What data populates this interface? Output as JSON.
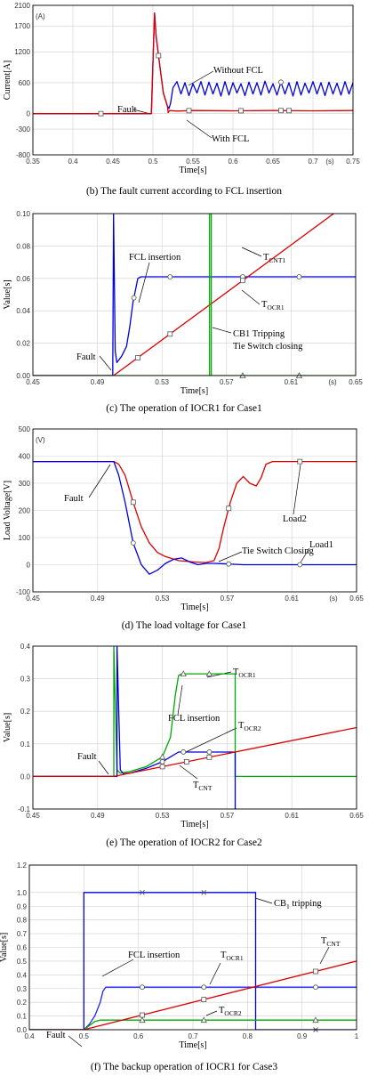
{
  "chart_data": [
    {
      "type": "line",
      "caption": "(b)  The fault current according to FCL insertion",
      "xlabel": "Time[s]",
      "ylabel": "Current[A]",
      "x_unit": "(s)",
      "y_unit": "(A)",
      "xlim": [
        0.35,
        0.75
      ],
      "ylim": [
        -800,
        2100
      ],
      "xticks": [
        "0.35",
        "0.4",
        "0.45",
        "0.5",
        "0.55",
        "0.6",
        "0.65",
        "0.7",
        "0.75"
      ],
      "yticks": [
        "-800",
        "-300",
        "0",
        "600",
        "1200",
        "1700",
        "2100"
      ],
      "series": [
        {
          "name": "Without FCL",
          "color": "#0000dd",
          "x": [
            0.35,
            0.498,
            0.502,
            0.504,
            0.508,
            0.513,
            0.518,
            0.52,
            0.522,
            0.525,
            0.53,
            0.535,
            0.54,
            0.545,
            0.55,
            0.555,
            0.56,
            0.565,
            0.57,
            0.575,
            0.58,
            0.585,
            0.59,
            0.595,
            0.6,
            0.605,
            0.61,
            0.615,
            0.62,
            0.625,
            0.63,
            0.635,
            0.64,
            0.645,
            0.65,
            0.655,
            0.66,
            0.665,
            0.67,
            0.675,
            0.68,
            0.685,
            0.69,
            0.695,
            0.7,
            0.705,
            0.71,
            0.715,
            0.72,
            0.725,
            0.73,
            0.735,
            0.74,
            0.745,
            0.75
          ],
          "y": [
            0,
            0,
            1950,
            1500,
            1000,
            400,
            150,
            100,
            200,
            500,
            620,
            380,
            600,
            350,
            580,
            400,
            620,
            360,
            610,
            380,
            590,
            340,
            620,
            360,
            600,
            400,
            580,
            350,
            610,
            380,
            600,
            360,
            630,
            400,
            580,
            360,
            610,
            380,
            600,
            340,
            620,
            360,
            590,
            400,
            620,
            380,
            600,
            350,
            610,
            380,
            590,
            360,
            620,
            380,
            600
          ]
        },
        {
          "name": "With FCL",
          "color": "#dd0000",
          "x": [
            0.35,
            0.498,
            0.502,
            0.504,
            0.508,
            0.513,
            0.518,
            0.519,
            0.521,
            0.53,
            0.55,
            0.6,
            0.65,
            0.7,
            0.75
          ],
          "y": [
            0,
            0,
            1950,
            1500,
            1000,
            400,
            150,
            20,
            60,
            50,
            60,
            55,
            60,
            55,
            60
          ]
        }
      ],
      "annotations": [
        "Fault",
        "Without FCL",
        "With FCL"
      ]
    },
    {
      "type": "line",
      "caption": "(c)  The operation of IOCR1 for Case1",
      "xlabel": "Time[s]",
      "ylabel": "Value[s]",
      "x_unit": "(s)",
      "xlim": [
        0.45,
        0.65
      ],
      "ylim": [
        0,
        0.1
      ],
      "xticks": [
        "0.45",
        "0.49",
        "0.53",
        "0.57",
        "0.61",
        "0.65"
      ],
      "yticks": [
        "0.00",
        "0.02",
        "0.04",
        "0.06",
        "0.08",
        "0.10"
      ],
      "series": [
        {
          "name": "T_OCR1",
          "color": "#0000dd",
          "x": [
            0.45,
            0.4995,
            0.5,
            0.501,
            0.502,
            0.505,
            0.508,
            0.51,
            0.512,
            0.515,
            0.517,
            0.65
          ],
          "y": [
            0,
            0,
            0.1,
            0.015,
            0.008,
            0.012,
            0.018,
            0.03,
            0.045,
            0.06,
            0.061,
            0.061
          ]
        },
        {
          "name": "T_CNT1",
          "color": "#dd0000",
          "x": [
            0.45,
            0.5,
            0.65
          ],
          "y": [
            0,
            0,
            0.11
          ]
        },
        {
          "name": "CB1 Tripping",
          "color": "#00aa00",
          "x": [
            0.45,
            0.5595,
            0.5595,
            0.5605,
            0.5605,
            0.65
          ],
          "y": [
            0,
            0,
            0.1,
            0.1,
            0,
            0
          ]
        }
      ],
      "annotations": [
        "Fault",
        "FCL insertion",
        "T",
        "CNT1",
        "T",
        "OCR1",
        "CB1 Tripping",
        "Tie Switch closing"
      ]
    },
    {
      "type": "line",
      "caption": "(d)  The load voltage for Case1",
      "xlabel": "Time[s]",
      "ylabel": "Load Voltage[V]",
      "x_unit": "(s)",
      "y_unit": "(V)",
      "xlim": [
        0.45,
        0.65
      ],
      "ylim": [
        -100,
        500
      ],
      "xticks": [
        "0.45",
        "0.49",
        "0.53",
        "0.57",
        "0.61",
        "0.65"
      ],
      "yticks": [
        "-100",
        "0",
        "100",
        "200",
        "300",
        "400",
        "500"
      ],
      "series": [
        {
          "name": "Load2",
          "color": "#dd0000",
          "x": [
            0.45,
            0.5,
            0.503,
            0.507,
            0.512,
            0.517,
            0.522,
            0.527,
            0.532,
            0.54,
            0.55,
            0.557,
            0.562,
            0.565,
            0.568,
            0.572,
            0.576,
            0.58,
            0.584,
            0.588,
            0.591,
            0.594,
            0.598,
            0.602,
            0.65
          ],
          "y": [
            380,
            380,
            370,
            330,
            230,
            140,
            80,
            45,
            30,
            15,
            10,
            8,
            15,
            60,
            140,
            230,
            300,
            325,
            300,
            290,
            320,
            370,
            380,
            380,
            380
          ]
        },
        {
          "name": "Load1",
          "color": "#0000dd",
          "x": [
            0.45,
            0.5,
            0.503,
            0.507,
            0.512,
            0.517,
            0.522,
            0.527,
            0.532,
            0.537,
            0.542,
            0.547,
            0.552,
            0.557,
            0.562,
            0.57,
            0.58,
            0.6,
            0.65
          ],
          "y": [
            380,
            380,
            330,
            230,
            80,
            0,
            -35,
            -20,
            5,
            20,
            25,
            10,
            0,
            5,
            5,
            3,
            0,
            0,
            0
          ]
        }
      ],
      "annotations": [
        "Fault",
        "Load2",
        "Tie Switch Closing",
        "Load1"
      ]
    },
    {
      "type": "line",
      "caption": "(e)  The operation of IOCR2 for Case2",
      "xlabel": "Time[s]",
      "ylabel": "Value[s]",
      "xlim": [
        0.45,
        0.65
      ],
      "ylim": [
        -0.1,
        0.4
      ],
      "xticks": [
        "0.45",
        "0.49",
        "0.53",
        "0.57",
        "0.61",
        "0.65"
      ],
      "yticks": [
        "-0.1",
        "0.0",
        "0.1",
        "0.2",
        "0.3",
        "0.4"
      ],
      "series": [
        {
          "name": "T_OCR1",
          "color": "#00aa00",
          "x": [
            0.45,
            0.5,
            0.5,
            0.502,
            0.504,
            0.51,
            0.52,
            0.53,
            0.535,
            0.538,
            0.54,
            0.542,
            0.545,
            0.575,
            0.575,
            0.65
          ],
          "y": [
            0,
            0,
            0.4,
            0.02,
            0.01,
            0.015,
            0.03,
            0.06,
            0.12,
            0.25,
            0.31,
            0.315,
            0.315,
            0.315,
            0,
            0
          ]
        },
        {
          "name": "T_OCR2",
          "color": "#0000dd",
          "x": [
            0.45,
            0.502,
            0.502,
            0.504,
            0.506,
            0.51,
            0.52,
            0.53,
            0.535,
            0.54,
            0.575,
            0.575,
            0.576
          ],
          "y": [
            0,
            0,
            0.4,
            0.02,
            0.008,
            0.01,
            0.025,
            0.045,
            0.06,
            0.075,
            0.075,
            -0.1,
            -0.1
          ]
        },
        {
          "name": "T_CNT",
          "color": "#dd0000",
          "x": [
            0.45,
            0.5,
            0.65
          ],
          "y": [
            0,
            0,
            0.15
          ]
        }
      ],
      "annotations": [
        "Fault",
        "T",
        "OCR1",
        "FCL insertion",
        "T",
        "OCR2",
        "T",
        "CNT"
      ]
    },
    {
      "type": "line",
      "caption": "(f)  The backup operation of IOCR1 for Case3",
      "xlabel": "Time[s]",
      "ylabel": "Value[s]",
      "xlim": [
        0.4,
        1.0
      ],
      "ylim": [
        0,
        1.2
      ],
      "xticks": [
        "0.4",
        "0.5",
        "0.6",
        "0.7",
        "0.8",
        "0.9",
        "1"
      ],
      "yticks": [
        "0.0",
        "0.1",
        "0.2",
        "0.3",
        "0.4",
        "0.5",
        "0.6",
        "0.7",
        "0.8",
        "0.9",
        "1.0",
        "1.2"
      ],
      "series": [
        {
          "name": "CB1 tripping",
          "color": "#0000dd",
          "x": [
            0.4,
            0.5,
            0.5,
            0.815,
            0.815,
            1.0
          ],
          "y": [
            0,
            0,
            1.0,
            1.0,
            0,
            0
          ]
        },
        {
          "name": "T_OCR1",
          "color": "#2222ff",
          "x": [
            0.4,
            0.5,
            0.505,
            0.51,
            0.52,
            0.53,
            0.535,
            0.54,
            1.0
          ],
          "y": [
            0,
            0,
            0.02,
            0.04,
            0.1,
            0.2,
            0.28,
            0.31,
            0.31
          ]
        },
        {
          "name": "T_OCR2",
          "color": "#00aa00",
          "x": [
            0.4,
            0.5,
            0.51,
            0.52,
            0.53,
            1.0
          ],
          "y": [
            0,
            0,
            0.03,
            0.06,
            0.07,
            0.07
          ]
        },
        {
          "name": "T_CNT",
          "color": "#dd0000",
          "x": [
            0.4,
            0.5,
            1.0
          ],
          "y": [
            0,
            0,
            0.5
          ]
        }
      ],
      "annotations": [
        "Fault",
        "FCL insertion",
        "T",
        "OCR1",
        "T",
        "OCR2",
        "T",
        "CNT",
        "CB",
        "1",
        " tripping"
      ]
    }
  ]
}
